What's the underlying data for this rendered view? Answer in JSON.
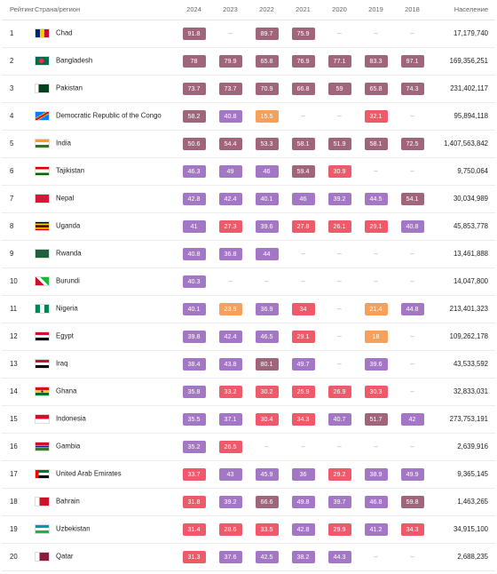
{
  "header": {
    "rank": "Рейтинг",
    "country": "Страна/регион",
    "years": [
      "2024",
      "2023",
      "2022",
      "2021",
      "2020",
      "2019",
      "2018"
    ],
    "population": "Население"
  },
  "colors": {
    "maroon": "#a0657a",
    "purple": "#a477c6",
    "red": "#f0596a",
    "orange": "#f5a05c"
  },
  "rows": [
    {
      "rank": "1",
      "country": "Chad",
      "flag": "chad",
      "values": [
        {
          "v": "91.8",
          "c": "maroon"
        },
        {
          "v": "–",
          "c": ""
        },
        {
          "v": "89.7",
          "c": "maroon"
        },
        {
          "v": "75.9",
          "c": "maroon"
        },
        {
          "v": "–",
          "c": ""
        },
        {
          "v": "–",
          "c": ""
        },
        {
          "v": "–",
          "c": ""
        }
      ],
      "population": "17,179,740"
    },
    {
      "rank": "2",
      "country": "Bangladesh",
      "flag": "bangladesh",
      "values": [
        {
          "v": "78",
          "c": "maroon"
        },
        {
          "v": "79.9",
          "c": "maroon"
        },
        {
          "v": "65.8",
          "c": "maroon"
        },
        {
          "v": "76.9",
          "c": "maroon"
        },
        {
          "v": "77.1",
          "c": "maroon"
        },
        {
          "v": "83.3",
          "c": "maroon"
        },
        {
          "v": "97.1",
          "c": "maroon"
        }
      ],
      "population": "169,356,251"
    },
    {
      "rank": "3",
      "country": "Pakistan",
      "flag": "pakistan",
      "values": [
        {
          "v": "73.7",
          "c": "maroon"
        },
        {
          "v": "73.7",
          "c": "maroon"
        },
        {
          "v": "70.9",
          "c": "maroon"
        },
        {
          "v": "66.8",
          "c": "maroon"
        },
        {
          "v": "59",
          "c": "maroon"
        },
        {
          "v": "65.8",
          "c": "maroon"
        },
        {
          "v": "74.3",
          "c": "maroon"
        }
      ],
      "population": "231,402,117"
    },
    {
      "rank": "4",
      "country": "Democratic Republic of the Congo",
      "flag": "drc",
      "values": [
        {
          "v": "58.2",
          "c": "maroon"
        },
        {
          "v": "40.8",
          "c": "purple"
        },
        {
          "v": "15.5",
          "c": "orange"
        },
        {
          "v": "–",
          "c": ""
        },
        {
          "v": "–",
          "c": ""
        },
        {
          "v": "32.1",
          "c": "red"
        },
        {
          "v": "–",
          "c": ""
        }
      ],
      "population": "95,894,118"
    },
    {
      "rank": "5",
      "country": "India",
      "flag": "india",
      "values": [
        {
          "v": "50.6",
          "c": "maroon"
        },
        {
          "v": "54.4",
          "c": "maroon"
        },
        {
          "v": "53.3",
          "c": "maroon"
        },
        {
          "v": "58.1",
          "c": "maroon"
        },
        {
          "v": "51.9",
          "c": "maroon"
        },
        {
          "v": "58.1",
          "c": "maroon"
        },
        {
          "v": "72.5",
          "c": "maroon"
        }
      ],
      "population": "1,407,563,842"
    },
    {
      "rank": "6",
      "country": "Tajikistan",
      "flag": "tajikistan",
      "values": [
        {
          "v": "46.3",
          "c": "purple"
        },
        {
          "v": "49",
          "c": "purple"
        },
        {
          "v": "46",
          "c": "purple"
        },
        {
          "v": "59.4",
          "c": "maroon"
        },
        {
          "v": "30.9",
          "c": "red"
        },
        {
          "v": "–",
          "c": ""
        },
        {
          "v": "–",
          "c": ""
        }
      ],
      "population": "9,750,064"
    },
    {
      "rank": "7",
      "country": "Nepal",
      "flag": "nepal",
      "values": [
        {
          "v": "42.8",
          "c": "purple"
        },
        {
          "v": "42.4",
          "c": "purple"
        },
        {
          "v": "40.1",
          "c": "purple"
        },
        {
          "v": "46",
          "c": "purple"
        },
        {
          "v": "39.2",
          "c": "purple"
        },
        {
          "v": "44.5",
          "c": "purple"
        },
        {
          "v": "54.1",
          "c": "maroon"
        }
      ],
      "population": "30,034,989"
    },
    {
      "rank": "8",
      "country": "Uganda",
      "flag": "uganda",
      "values": [
        {
          "v": "41",
          "c": "purple"
        },
        {
          "v": "27.3",
          "c": "red"
        },
        {
          "v": "39.6",
          "c": "purple"
        },
        {
          "v": "27.8",
          "c": "red"
        },
        {
          "v": "26.1",
          "c": "red"
        },
        {
          "v": "29.1",
          "c": "red"
        },
        {
          "v": "40.8",
          "c": "purple"
        }
      ],
      "population": "45,853,778"
    },
    {
      "rank": "9",
      "country": "Rwanda",
      "flag": "rwanda",
      "values": [
        {
          "v": "40.8",
          "c": "purple"
        },
        {
          "v": "36.8",
          "c": "purple"
        },
        {
          "v": "44",
          "c": "purple"
        },
        {
          "v": "–",
          "c": ""
        },
        {
          "v": "–",
          "c": ""
        },
        {
          "v": "–",
          "c": ""
        },
        {
          "v": "–",
          "c": ""
        }
      ],
      "population": "13,461,888"
    },
    {
      "rank": "10",
      "country": "Burundi",
      "flag": "burundi",
      "values": [
        {
          "v": "40.3",
          "c": "purple"
        },
        {
          "v": "–",
          "c": ""
        },
        {
          "v": "–",
          "c": ""
        },
        {
          "v": "–",
          "c": ""
        },
        {
          "v": "–",
          "c": ""
        },
        {
          "v": "–",
          "c": ""
        },
        {
          "v": "–",
          "c": ""
        }
      ],
      "population": "14,047,800"
    },
    {
      "rank": "11",
      "country": "Nigeria",
      "flag": "nigeria",
      "values": [
        {
          "v": "40.1",
          "c": "purple"
        },
        {
          "v": "23.9",
          "c": "orange"
        },
        {
          "v": "36.9",
          "c": "purple"
        },
        {
          "v": "34",
          "c": "red"
        },
        {
          "v": "–",
          "c": ""
        },
        {
          "v": "21.4",
          "c": "orange"
        },
        {
          "v": "44.8",
          "c": "purple"
        }
      ],
      "population": "213,401,323"
    },
    {
      "rank": "12",
      "country": "Egypt",
      "flag": "egypt",
      "values": [
        {
          "v": "39.8",
          "c": "purple"
        },
        {
          "v": "42.4",
          "c": "purple"
        },
        {
          "v": "46.5",
          "c": "purple"
        },
        {
          "v": "29.1",
          "c": "red"
        },
        {
          "v": "–",
          "c": ""
        },
        {
          "v": "18",
          "c": "orange"
        },
        {
          "v": "–",
          "c": ""
        }
      ],
      "population": "109,262,178"
    },
    {
      "rank": "13",
      "country": "Iraq",
      "flag": "iraq",
      "values": [
        {
          "v": "38.4",
          "c": "purple"
        },
        {
          "v": "43.8",
          "c": "purple"
        },
        {
          "v": "80.1",
          "c": "maroon"
        },
        {
          "v": "49.7",
          "c": "purple"
        },
        {
          "v": "–",
          "c": ""
        },
        {
          "v": "39.6",
          "c": "purple"
        },
        {
          "v": "–",
          "c": ""
        }
      ],
      "population": "43,533,592"
    },
    {
      "rank": "14",
      "country": "Ghana",
      "flag": "ghana",
      "values": [
        {
          "v": "35.8",
          "c": "purple"
        },
        {
          "v": "33.2",
          "c": "red"
        },
        {
          "v": "30.2",
          "c": "red"
        },
        {
          "v": "25.9",
          "c": "red"
        },
        {
          "v": "26.9",
          "c": "red"
        },
        {
          "v": "30.3",
          "c": "red"
        },
        {
          "v": "–",
          "c": ""
        }
      ],
      "population": "32,833,031"
    },
    {
      "rank": "15",
      "country": "Indonesia",
      "flag": "indonesia",
      "values": [
        {
          "v": "35.5",
          "c": "purple"
        },
        {
          "v": "37.1",
          "c": "purple"
        },
        {
          "v": "30.4",
          "c": "red"
        },
        {
          "v": "34.3",
          "c": "red"
        },
        {
          "v": "40.7",
          "c": "purple"
        },
        {
          "v": "51.7",
          "c": "maroon"
        },
        {
          "v": "42",
          "c": "purple"
        }
      ],
      "population": "273,753,191"
    },
    {
      "rank": "16",
      "country": "Gambia",
      "flag": "gambia",
      "values": [
        {
          "v": "35.2",
          "c": "purple"
        },
        {
          "v": "26.5",
          "c": "red"
        },
        {
          "v": "–",
          "c": ""
        },
        {
          "v": "–",
          "c": ""
        },
        {
          "v": "–",
          "c": ""
        },
        {
          "v": "–",
          "c": ""
        },
        {
          "v": "–",
          "c": ""
        }
      ],
      "population": "2,639,916"
    },
    {
      "rank": "17",
      "country": "United Arab Emirates",
      "flag": "uae",
      "values": [
        {
          "v": "33.7",
          "c": "red"
        },
        {
          "v": "43",
          "c": "purple"
        },
        {
          "v": "45.9",
          "c": "purple"
        },
        {
          "v": "36",
          "c": "purple"
        },
        {
          "v": "29.2",
          "c": "red"
        },
        {
          "v": "38.9",
          "c": "purple"
        },
        {
          "v": "49.9",
          "c": "purple"
        }
      ],
      "population": "9,365,145"
    },
    {
      "rank": "18",
      "country": "Bahrain",
      "flag": "bahrain",
      "values": [
        {
          "v": "31.8",
          "c": "red"
        },
        {
          "v": "39.2",
          "c": "purple"
        },
        {
          "v": "66.6",
          "c": "maroon"
        },
        {
          "v": "49.8",
          "c": "purple"
        },
        {
          "v": "39.7",
          "c": "purple"
        },
        {
          "v": "46.8",
          "c": "purple"
        },
        {
          "v": "59.8",
          "c": "maroon"
        }
      ],
      "population": "1,463,265"
    },
    {
      "rank": "19",
      "country": "Uzbekistan",
      "flag": "uzbekistan",
      "values": [
        {
          "v": "31.4",
          "c": "red"
        },
        {
          "v": "28.6",
          "c": "red"
        },
        {
          "v": "33.5",
          "c": "red"
        },
        {
          "v": "42.8",
          "c": "purple"
        },
        {
          "v": "29.9",
          "c": "red"
        },
        {
          "v": "41.2",
          "c": "purple"
        },
        {
          "v": "34.3",
          "c": "red"
        }
      ],
      "population": "34,915,100"
    },
    {
      "rank": "20",
      "country": "Qatar",
      "flag": "qatar",
      "values": [
        {
          "v": "31.3",
          "c": "red"
        },
        {
          "v": "37.6",
          "c": "purple"
        },
        {
          "v": "42.5",
          "c": "purple"
        },
        {
          "v": "38.2",
          "c": "purple"
        },
        {
          "v": "44.3",
          "c": "purple"
        },
        {
          "v": "–",
          "c": ""
        },
        {
          "v": "–",
          "c": ""
        }
      ],
      "population": "2,688,235"
    }
  ]
}
